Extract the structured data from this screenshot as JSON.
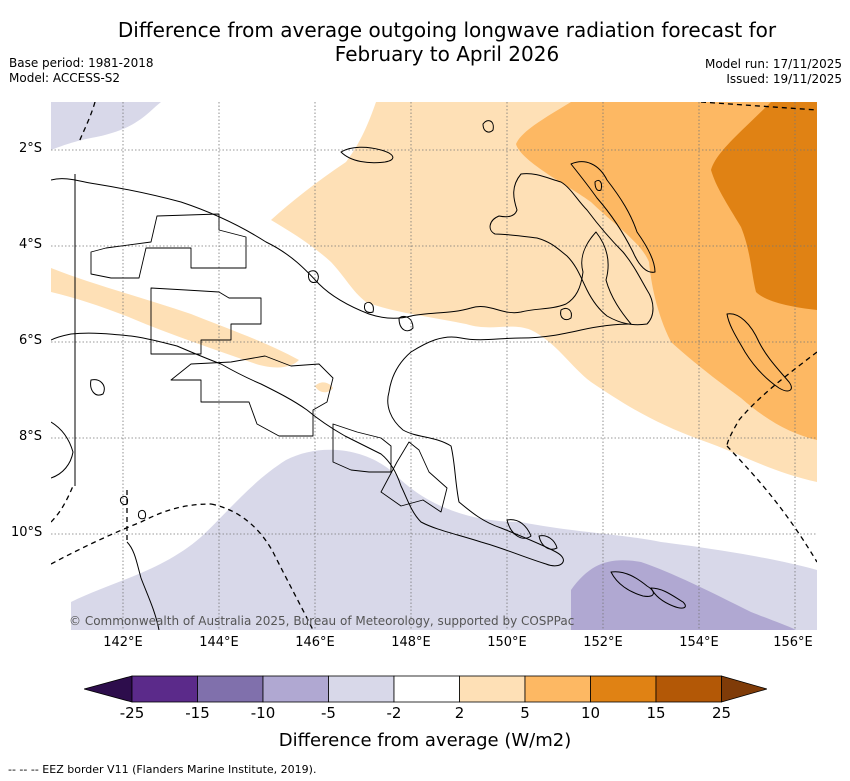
{
  "header": {
    "title_line1": "Difference from average outgoing longwave radiation forecast for",
    "title_line2": "February to April 2026",
    "base_period": "Base period: 1981-2018",
    "model": "Model: ACCESS-S2",
    "model_run": "Model run: 17/11/2025",
    "issued": "Issued: 19/11/2025"
  },
  "map": {
    "lat_labels": [
      "2°S",
      "4°S",
      "6°S",
      "8°S",
      "10°S"
    ],
    "lon_labels": [
      "142°E",
      "144°E",
      "146°E",
      "148°E",
      "150°E",
      "152°E",
      "154°E",
      "156°E"
    ],
    "copyright": "© Commonwealth of Australia 2025, Bureau of Meteorology, supported by COSPPac"
  },
  "colorbar": {
    "ticks": [
      "-25",
      "-15",
      "-10",
      "-5",
      "-2",
      "2",
      "5",
      "10",
      "15",
      "25"
    ],
    "colors": [
      "#2d0d4c",
      "#5b2a8a",
      "#8070ac",
      "#b0a8d2",
      "#d8d8e9",
      "#ffffff",
      "#fee0b6",
      "#fdb863",
      "#e08214",
      "#b35806",
      "#7f3b08"
    ],
    "label": "Difference from average (W/m2)"
  },
  "legend_note": "--  --  -- EEZ border V11 (Flanders Marine Institute, 2019)."
}
